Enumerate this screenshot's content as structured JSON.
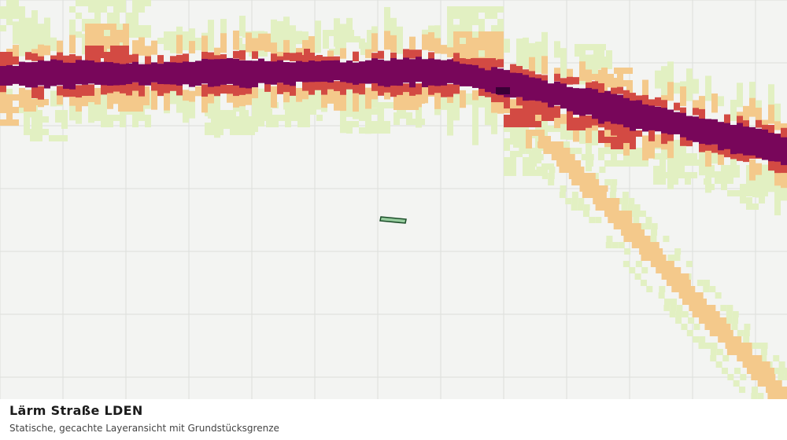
{
  "map": {
    "layer_name": "Lärm Straße LDEN",
    "noise_class_colors": {
      "class_1": "#e2f0c2",
      "class_2": "#f4c98b",
      "class_3": "#d34a43",
      "class_4": "#78065a",
      "class_5": "#3a0036"
    },
    "parcel_fill": "#96cc9e",
    "parcel_stroke": "#1b4d29",
    "grid_color": "#dcdedb",
    "background": "#f3f4f2"
  },
  "caption": {
    "title": "Lärm Straße LDEN",
    "subtitle": "Statische, gecachte Layeransicht mit Grundstücksgrenze"
  }
}
